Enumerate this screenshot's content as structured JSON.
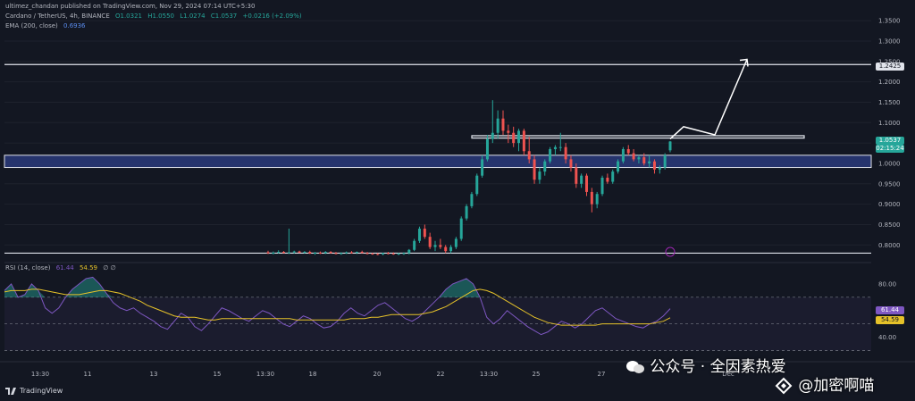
{
  "header": {
    "publisher": "ultimez_chandan published on TradingView.com, Nov 29, 2024 07:14 UTC+5:30",
    "symbol": "Cardano / TetherUS, 4h, BINANCE",
    "open": "O1.0321",
    "high": "H1.0550",
    "low": "L1.0274",
    "close": "C1.0537",
    "change": "+0.0216 (+2.09%)",
    "ema_label": "EMA (200, close)",
    "ema_value": "0.6936",
    "rsi_label": "RSI (14, close)",
    "rsi_value": "61.44",
    "rsi_ma_value": "54.59",
    "rsi_extra": "∅ ∅"
  },
  "footer": {
    "brand": "TradingView"
  },
  "watermark": {
    "line1": "公众号 · 全因素热爱",
    "line2": "@加密啊喵"
  },
  "colors": {
    "up": "#26a69a",
    "down": "#ef5350",
    "zone_fill": "#2a3a7a",
    "rsi_line": "#7e57c2",
    "rsi_ma": "#e6c229",
    "target_arrow": "#ffffff"
  },
  "chart_data": [
    {
      "type": "candlestick",
      "title": "Cardano / TetherUS, 4h, BINANCE",
      "ylim": [
        0.77,
        1.37
      ],
      "price_ticks": [
        1.35,
        1.3,
        1.25,
        1.2,
        1.15,
        1.1,
        1.05,
        1.0,
        0.95,
        0.9,
        0.85,
        0.8
      ],
      "price_tick_labels": [
        "1.3500",
        "1.3000",
        "1.2500",
        "1.2000",
        "1.1500",
        "1.1000",
        "1.0500",
        "1.0000",
        "0.9500",
        "0.9000",
        "0.8500",
        "0.8000"
      ],
      "x_tick_labels": [
        "13:30",
        "11",
        "13",
        "15",
        "13:30",
        "18",
        "20",
        "22",
        "13:30",
        "25",
        "27",
        "Dec"
      ],
      "current_price_label": "1.0537",
      "countdown_label": "02:15:24",
      "resistance_label": "1.2425",
      "levels": {
        "resistance": 1.2425,
        "support": 0.78
      },
      "zones": [
        {
          "name": "demand-zone",
          "top": 1.02,
          "bottom": 0.99
        },
        {
          "name": "resistance-zone",
          "top": 1.068,
          "bottom": 1.062
        }
      ],
      "projection": [
        [
          1.06,
          1.06
        ],
        [
          1.1,
          1.09
        ],
        [
          1.13,
          1.07
        ],
        [
          1.24,
          1.255
        ]
      ],
      "candles": [
        [
          0.782,
          0.786,
          0.778,
          0.78
        ],
        [
          0.78,
          0.784,
          0.777,
          0.781
        ],
        [
          0.781,
          0.787,
          0.779,
          0.783
        ],
        [
          0.783,
          0.785,
          0.78,
          0.78
        ],
        [
          0.78,
          0.84,
          0.778,
          0.782
        ],
        [
          0.782,
          0.786,
          0.779,
          0.784
        ],
        [
          0.784,
          0.786,
          0.78,
          0.781
        ],
        [
          0.781,
          0.785,
          0.779,
          0.783
        ],
        [
          0.783,
          0.786,
          0.778,
          0.779
        ],
        [
          0.779,
          0.783,
          0.776,
          0.781
        ],
        [
          0.781,
          0.784,
          0.778,
          0.78
        ],
        [
          0.78,
          0.785,
          0.778,
          0.783
        ],
        [
          0.783,
          0.785,
          0.779,
          0.78
        ],
        [
          0.78,
          0.783,
          0.777,
          0.779
        ],
        [
          0.779,
          0.782,
          0.776,
          0.78
        ],
        [
          0.78,
          0.784,
          0.778,
          0.782
        ],
        [
          0.782,
          0.785,
          0.779,
          0.781
        ],
        [
          0.781,
          0.784,
          0.778,
          0.783
        ],
        [
          0.783,
          0.786,
          0.78,
          0.78
        ],
        [
          0.78,
          0.783,
          0.777,
          0.779
        ],
        [
          0.779,
          0.781,
          0.776,
          0.778
        ],
        [
          0.778,
          0.78,
          0.775,
          0.777
        ],
        [
          0.777,
          0.781,
          0.775,
          0.78
        ],
        [
          0.78,
          0.783,
          0.777,
          0.779
        ],
        [
          0.779,
          0.782,
          0.776,
          0.778
        ],
        [
          0.778,
          0.781,
          0.775,
          0.779
        ],
        [
          0.779,
          0.782,
          0.776,
          0.78
        ],
        [
          0.78,
          0.79,
          0.777,
          0.788
        ],
        [
          0.788,
          0.815,
          0.785,
          0.81
        ],
        [
          0.81,
          0.845,
          0.805,
          0.84
        ],
        [
          0.84,
          0.85,
          0.815,
          0.82
        ],
        [
          0.82,
          0.83,
          0.79,
          0.795
        ],
        [
          0.795,
          0.81,
          0.785,
          0.8
        ],
        [
          0.8,
          0.815,
          0.79,
          0.795
        ],
        [
          0.795,
          0.8,
          0.78,
          0.785
        ],
        [
          0.785,
          0.8,
          0.78,
          0.795
        ],
        [
          0.795,
          0.82,
          0.79,
          0.815
        ],
        [
          0.815,
          0.87,
          0.81,
          0.865
        ],
        [
          0.865,
          0.9,
          0.86,
          0.895
        ],
        [
          0.895,
          0.93,
          0.89,
          0.925
        ],
        [
          0.925,
          0.975,
          0.92,
          0.97
        ],
        [
          0.97,
          1.02,
          0.965,
          1.01
        ],
        [
          1.01,
          1.07,
          1.005,
          1.06
        ],
        [
          1.06,
          1.155,
          1.05,
          1.075
        ],
        [
          1.075,
          1.13,
          1.06,
          1.11
        ],
        [
          1.11,
          1.13,
          1.07,
          1.08
        ],
        [
          1.08,
          1.095,
          1.05,
          1.075
        ],
        [
          1.075,
          1.09,
          1.04,
          1.05
        ],
        [
          1.05,
          1.085,
          1.03,
          1.08
        ],
        [
          1.08,
          1.085,
          1.02,
          1.03
        ],
        [
          1.03,
          1.065,
          1.0,
          1.01
        ],
        [
          1.01,
          1.02,
          0.95,
          0.96
        ],
        [
          0.96,
          0.99,
          0.95,
          0.98
        ],
        [
          0.98,
          1.01,
          0.97,
          1.005
        ],
        [
          1.005,
          1.04,
          1.0,
          1.035
        ],
        [
          1.035,
          1.045,
          1.02,
          1.04
        ],
        [
          1.04,
          1.075,
          1.03,
          1.04
        ],
        [
          1.04,
          1.05,
          1.0,
          1.01
        ],
        [
          1.01,
          1.02,
          0.98,
          0.99
        ],
        [
          0.99,
          1.0,
          0.94,
          0.95
        ],
        [
          0.95,
          0.975,
          0.94,
          0.97
        ],
        [
          0.97,
          0.975,
          0.92,
          0.93
        ],
        [
          0.93,
          0.94,
          0.88,
          0.9
        ],
        [
          0.9,
          0.93,
          0.89,
          0.925
        ],
        [
          0.925,
          0.97,
          0.92,
          0.965
        ],
        [
          0.965,
          0.975,
          0.95,
          0.955
        ],
        [
          0.955,
          0.985,
          0.95,
          0.98
        ],
        [
          0.98,
          1.01,
          0.975,
          1.005
        ],
        [
          1.005,
          1.04,
          1.0,
          1.035
        ],
        [
          1.035,
          1.045,
          1.02,
          1.025
        ],
        [
          1.025,
          1.035,
          1.005,
          1.01
        ],
        [
          1.01,
          1.02,
          1.0,
          1.015
        ],
        [
          1.015,
          1.025,
          0.995,
          1.0
        ],
        [
          1.0,
          1.02,
          0.99,
          1.005
        ],
        [
          1.005,
          1.01,
          0.975,
          0.985
        ],
        [
          0.985,
          0.995,
          0.975,
          0.99
        ],
        [
          0.99,
          1.025,
          0.985,
          1.02
        ],
        [
          1.0321,
          1.055,
          1.0274,
          1.0537
        ]
      ]
    },
    {
      "type": "line",
      "title": "RSI (14, close)",
      "ylim": [
        25,
        92
      ],
      "y_tick_labels": [
        "80.00",
        "40.00"
      ],
      "y_ticks": [
        80,
        40
      ],
      "bands": {
        "upper": 70,
        "lower": 30
      },
      "rsi_label_value": "61.44",
      "ma_label_value": "54.59",
      "series": [
        {
          "name": "RSI (14, close)",
          "values": [
            75,
            80,
            70,
            72,
            80,
            75,
            62,
            58,
            62,
            70,
            76,
            80,
            84,
            85,
            80,
            73,
            66,
            62,
            60,
            62,
            58,
            55,
            52,
            48,
            46,
            52,
            58,
            55,
            48,
            45,
            50,
            56,
            62,
            60,
            57,
            54,
            52,
            56,
            60,
            58,
            54,
            50,
            48,
            52,
            56,
            54,
            50,
            47,
            48,
            52,
            58,
            62,
            58,
            56,
            60,
            64,
            66,
            62,
            58,
            54,
            52,
            55,
            60,
            65,
            70,
            76,
            80,
            82,
            84,
            80,
            70,
            55,
            50,
            54,
            60,
            56,
            52,
            48,
            45,
            42,
            44,
            48,
            52,
            50,
            47,
            50,
            55,
            60,
            62,
            58,
            54,
            52,
            50,
            48,
            47,
            50,
            52,
            56,
            61.44
          ]
        },
        {
          "name": "RSI MA",
          "values": [
            74,
            75,
            75,
            75,
            76,
            76,
            75,
            74,
            73,
            72,
            72,
            72,
            73,
            74,
            75,
            75,
            74,
            73,
            71,
            69,
            67,
            64,
            62,
            60,
            58,
            56,
            55,
            55,
            55,
            54,
            53,
            53,
            54,
            54,
            54,
            54,
            54,
            54,
            54,
            54,
            54,
            54,
            54,
            53,
            53,
            53,
            53,
            53,
            53,
            53,
            53,
            54,
            54,
            54,
            55,
            55,
            56,
            57,
            57,
            57,
            57,
            57,
            58,
            59,
            61,
            63,
            66,
            69,
            72,
            75,
            76,
            75,
            73,
            70,
            67,
            64,
            61,
            58,
            55,
            53,
            51,
            50,
            49,
            49,
            49,
            49,
            49,
            49,
            50,
            50,
            50,
            50,
            50,
            50,
            50,
            50,
            51,
            52,
            54.59
          ]
        }
      ]
    }
  ]
}
